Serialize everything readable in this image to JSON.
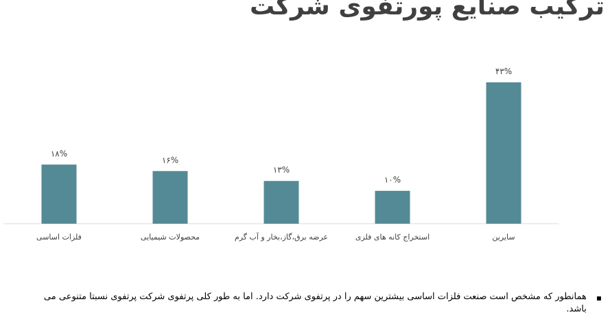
{
  "page": {
    "title": "ترکیب صنایع پورتفوی شرکت",
    "bullet_symbol": "▪",
    "bullet_text": "همانطور که مشخص است صنعت فلزات اساسی بیشترین سهم را در پرتفوی شرکت دارد. اما به طور کلی پرتفوی شرکت پرتفوی نسبتا متنوعی می باشد."
  },
  "chart_data": {
    "type": "bar",
    "categories": [
      "فلزات اساسی",
      "محصولات شیمیایی",
      "عرضه برق،گاز،بخار و آب گرم",
      "استخراج کانه های فلزی",
      "سایرین"
    ],
    "values": [
      18,
      16,
      13,
      10,
      43
    ],
    "data_labels": [
      "۱۸%",
      "۱۶%",
      "۱۳%",
      "۱۰%",
      "۴۳%"
    ],
    "unit": "%",
    "ylim": [
      0,
      43
    ],
    "bar_color": "#548A96",
    "axis_color": "#D9D9D9",
    "grid": false,
    "legend": "none"
  }
}
